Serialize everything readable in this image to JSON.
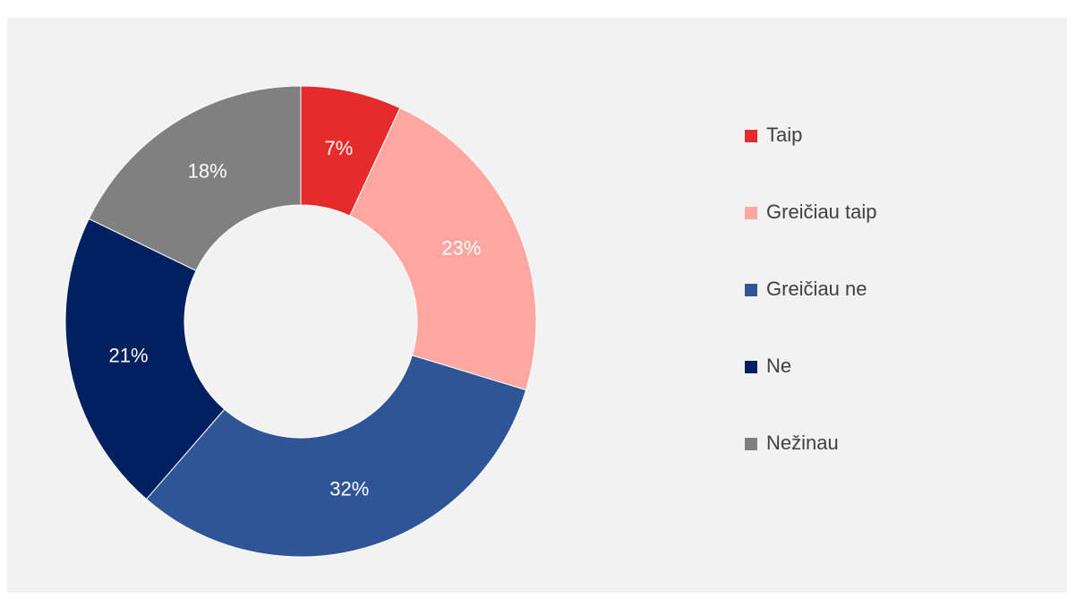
{
  "chart_data": {
    "type": "donut",
    "categories": [
      "Taip",
      "Greičiau taip",
      "Greičiau ne",
      "Ne",
      "Nežinau"
    ],
    "values": [
      7,
      23,
      32,
      21,
      18
    ],
    "value_labels": [
      "7%",
      "23%",
      "32%",
      "21%",
      "18%"
    ],
    "colors": [
      "#e52b2b",
      "#ffa7a0",
      "#2f5597",
      "#002060",
      "#808080"
    ],
    "legend": "right"
  }
}
